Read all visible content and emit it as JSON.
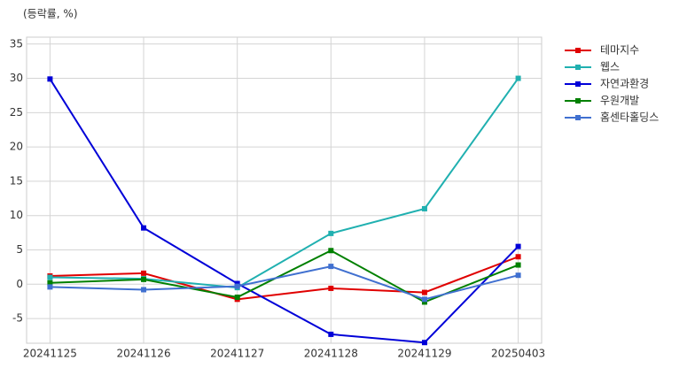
{
  "chart_data": {
    "type": "line",
    "y_label": "(등락률, %)",
    "categories": [
      "20241125",
      "20241126",
      "20241127",
      "20241128",
      "20241129",
      "20250403"
    ],
    "series": [
      {
        "name": "테마지수",
        "color": "#e00000",
        "values": [
          1.2,
          1.6,
          -2.2,
          -0.6,
          -1.2,
          4.0
        ]
      },
      {
        "name": "웹스",
        "color": "#20b0b0",
        "values": [
          1.0,
          0.8,
          -0.5,
          7.4,
          11.0,
          30.0
        ]
      },
      {
        "name": "자연과환경",
        "color": "#0000d8",
        "values": [
          29.9,
          8.2,
          0.1,
          -7.3,
          -8.5,
          5.5
        ]
      },
      {
        "name": "우원개발",
        "color": "#008000",
        "values": [
          0.2,
          0.7,
          -1.9,
          4.9,
          -2.6,
          2.8
        ]
      },
      {
        "name": "홈센타홀딩스",
        "color": "#4070d0",
        "values": [
          -0.4,
          -0.8,
          -0.3,
          2.6,
          -2.2,
          1.3
        ]
      }
    ],
    "ylim": [
      -8.6,
      36
    ],
    "yticks": [
      -5,
      0,
      5,
      10,
      15,
      20,
      25,
      30,
      35
    ],
    "grid": true,
    "legend": "outside-right"
  }
}
